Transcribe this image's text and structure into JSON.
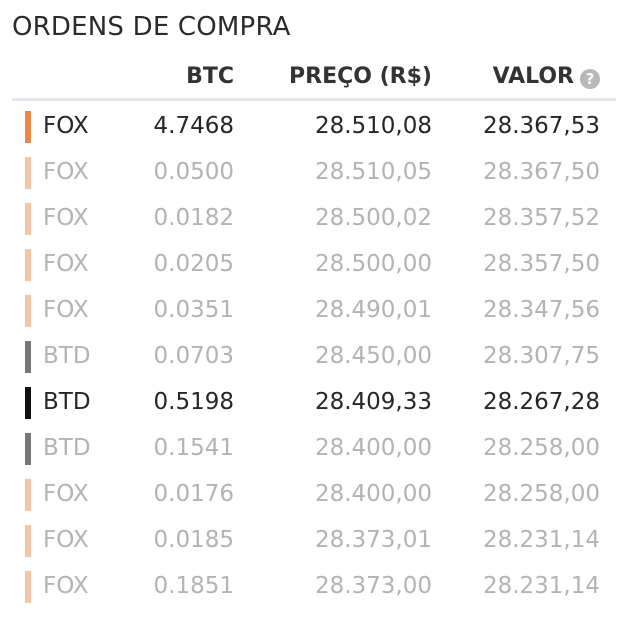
{
  "title": "ORDENS DE COMPRA",
  "header": {
    "btc": "BTC",
    "price": "PREÇO (R$)",
    "valor": "VALOR",
    "info_icon": "?"
  },
  "colors": {
    "fox_strong": "#e8874a",
    "fox_faded": "#f3c4a8",
    "btd_strong": "#111111",
    "btd_faded": "#777777"
  },
  "rows": [
    {
      "exchange": "FOX",
      "btc": "4.7468",
      "price": "28.510,08",
      "valor": "28.367,53",
      "emphasis": "strong"
    },
    {
      "exchange": "FOX",
      "btc": "0.0500",
      "price": "28.510,05",
      "valor": "28.367,50",
      "emphasis": "faded"
    },
    {
      "exchange": "FOX",
      "btc": "0.0182",
      "price": "28.500,02",
      "valor": "28.357,52",
      "emphasis": "faded"
    },
    {
      "exchange": "FOX",
      "btc": "0.0205",
      "price": "28.500,00",
      "valor": "28.357,50",
      "emphasis": "faded"
    },
    {
      "exchange": "FOX",
      "btc": "0.0351",
      "price": "28.490,01",
      "valor": "28.347,56",
      "emphasis": "faded"
    },
    {
      "exchange": "BTD",
      "btc": "0.0703",
      "price": "28.450,00",
      "valor": "28.307,75",
      "emphasis": "faded"
    },
    {
      "exchange": "BTD",
      "btc": "0.5198",
      "price": "28.409,33",
      "valor": "28.267,28",
      "emphasis": "strong"
    },
    {
      "exchange": "BTD",
      "btc": "0.1541",
      "price": "28.400,00",
      "valor": "28.258,00",
      "emphasis": "faded"
    },
    {
      "exchange": "FOX",
      "btc": "0.0176",
      "price": "28.400,00",
      "valor": "28.258,00",
      "emphasis": "faded"
    },
    {
      "exchange": "FOX",
      "btc": "0.0185",
      "price": "28.373,01",
      "valor": "28.231,14",
      "emphasis": "faded"
    },
    {
      "exchange": "FOX",
      "btc": "0.1851",
      "price": "28.373,00",
      "valor": "28.231,14",
      "emphasis": "faded"
    }
  ]
}
